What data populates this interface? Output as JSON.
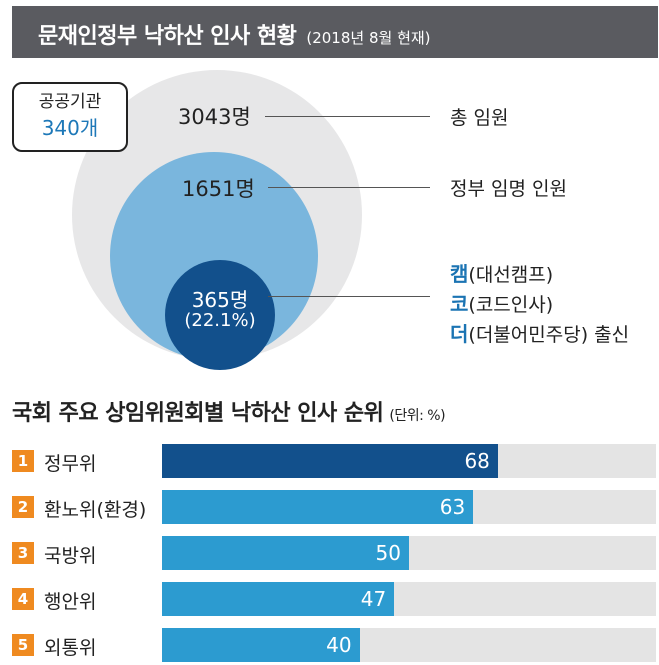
{
  "header": {
    "title": "문재인정부 낙하산 인사 현황",
    "subtitle": "(2018년 8월 현재)"
  },
  "institutions": {
    "label": "공공기관",
    "count": "340개"
  },
  "circle_stats": {
    "total_number": "3043명",
    "total_label": "총 임원",
    "gov_number": "1651명",
    "gov_label": "정부 임명 인원",
    "camp_number": "365명",
    "camp_percent": "(22.1%)",
    "origin_lines": [
      {
        "prefix": "캠",
        "rest": "(대선캠프)"
      },
      {
        "prefix": "코",
        "rest": "(코드인사)"
      },
      {
        "prefix": "더",
        "rest": "(더불어민주당) 출신"
      }
    ]
  },
  "ranking": {
    "title": "국회 주요 상임위원회별 낙하산 인사 순위",
    "unit": "(단위: %)"
  },
  "colors": {
    "outer_circle": "#e7e7e8",
    "mid_circle": "#7ab6dd",
    "inner_circle": "#12508c",
    "bar_top": "#12508c",
    "bar_other": "#2c9bd0",
    "rank_badge": "#ef8a20",
    "track": "#e4e4e4"
  },
  "chart_data": {
    "type": "bar",
    "orientation": "horizontal",
    "title": "국회 주요 상임위원회별 낙하산 인사 순위",
    "unit": "(단위: %)",
    "ranks": [
      "1",
      "2",
      "3",
      "4",
      "5"
    ],
    "categories": [
      "정무위",
      "환노위(환경)",
      "국방위",
      "행안위",
      "외통위"
    ],
    "values": [
      68,
      63,
      50,
      47,
      40
    ],
    "xlim": [
      0,
      100
    ]
  }
}
